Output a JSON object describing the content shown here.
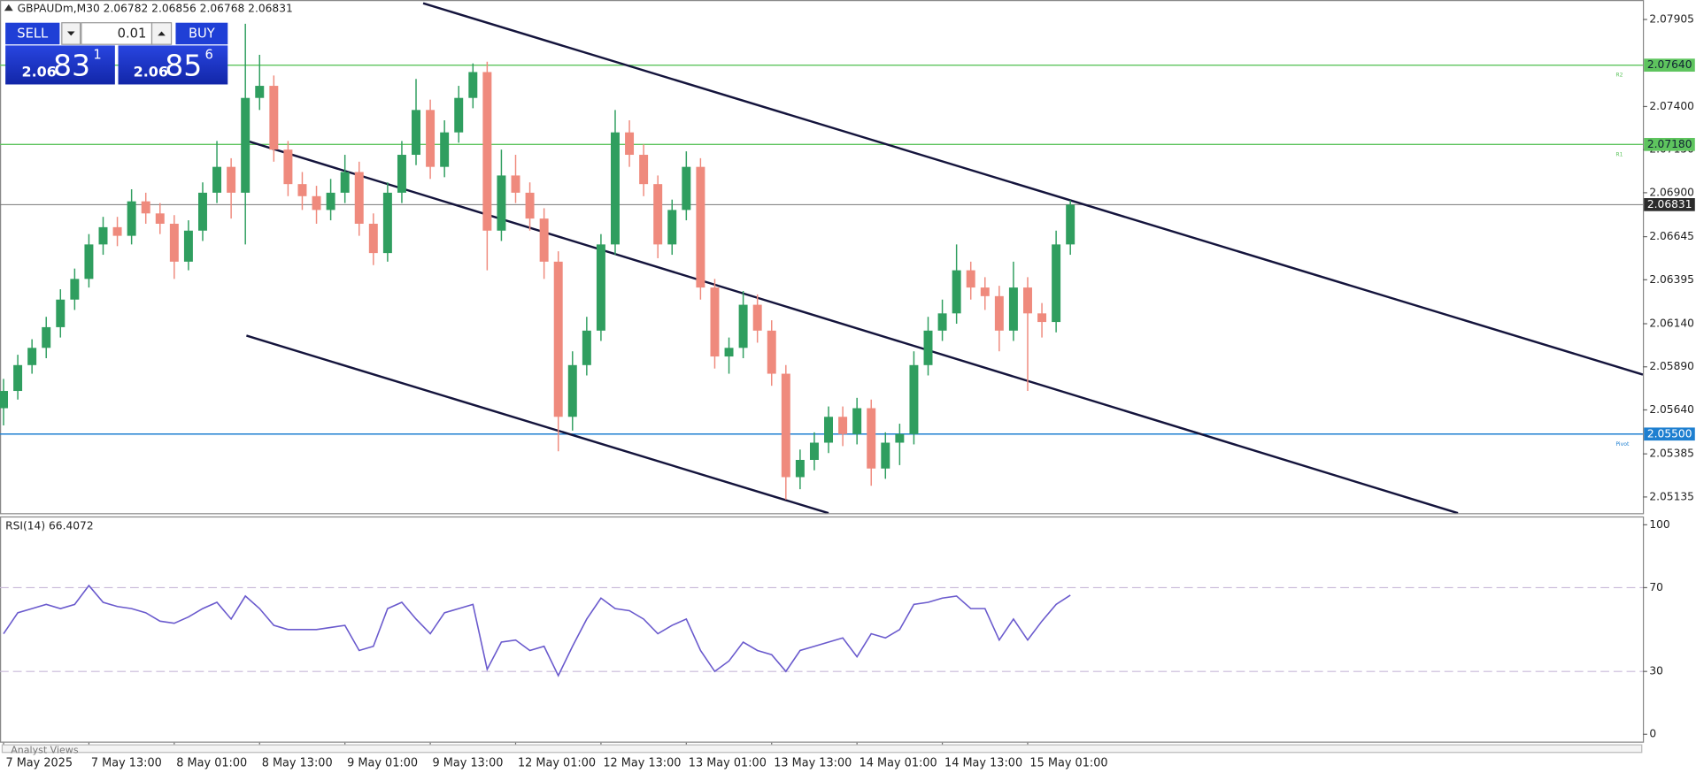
{
  "header": {
    "symbol_info": "GBPAUDm,M30  2.06782 2.06856 2.06768 2.06831"
  },
  "trade_panel": {
    "sell": "SELL",
    "buy": "BUY",
    "volume": "0.01",
    "bid_big": "2.06",
    "bid_main": "83",
    "bid_sup": "1",
    "ask_big": "2.06",
    "ask_main": "85",
    "ask_sup": "6"
  },
  "chart_data": [
    {
      "type": "candlestick",
      "x": [
        0,
        4,
        8,
        12,
        16,
        20,
        24,
        28,
        32,
        36,
        40,
        44,
        48,
        52,
        56,
        60,
        64,
        68,
        72,
        76,
        80,
        84,
        88,
        92,
        96,
        100,
        104,
        108,
        112,
        116,
        120,
        124,
        128,
        132,
        136,
        140,
        144,
        148,
        152,
        156,
        160,
        164,
        168,
        172,
        176,
        180,
        184,
        188,
        192,
        196,
        200,
        204,
        208,
        212,
        216,
        220,
        224,
        228,
        232,
        236,
        240,
        244,
        248,
        252,
        256,
        260,
        264,
        268,
        272,
        276,
        280,
        284,
        288,
        292,
        296,
        300
      ],
      "open": [
        2.0565,
        2.0575,
        2.059,
        2.06,
        2.0612,
        2.0628,
        2.064,
        2.066,
        2.067,
        2.0665,
        2.0685,
        2.0678,
        2.0672,
        2.065,
        2.0668,
        2.069,
        2.0705,
        2.069,
        2.0745,
        2.0752,
        2.0715,
        2.0695,
        2.0688,
        2.068,
        2.069,
        2.0702,
        2.0672,
        2.0655,
        2.069,
        2.0712,
        2.0738,
        2.0705,
        2.0725,
        2.0745,
        2.076,
        2.0668,
        2.07,
        2.069,
        2.0675,
        2.065,
        2.056,
        2.059,
        2.061,
        2.066,
        2.0725,
        2.0712,
        2.0695,
        2.066,
        2.068,
        2.0705,
        2.0635,
        2.0595,
        2.06,
        2.0625,
        2.061,
        2.0585,
        2.0525,
        2.0535,
        2.0545,
        2.056,
        2.055,
        2.0565,
        2.053,
        2.0545,
        2.055,
        2.059,
        2.061,
        2.062,
        2.0645,
        2.0635,
        2.063,
        2.061,
        2.0635,
        2.062,
        2.0615,
        2.066
      ],
      "high": [
        2.0582,
        2.0596,
        2.0605,
        2.0618,
        2.0634,
        2.0646,
        2.0666,
        2.0676,
        2.0676,
        2.0692,
        2.069,
        2.0684,
        2.0677,
        2.0674,
        2.0696,
        2.072,
        2.071,
        2.0788,
        2.077,
        2.0758,
        2.072,
        2.0702,
        2.0694,
        2.0698,
        2.0712,
        2.0708,
        2.0678,
        2.0696,
        2.072,
        2.0756,
        2.0744,
        2.0732,
        2.0752,
        2.0765,
        2.0766,
        2.0715,
        2.0712,
        2.0696,
        2.0681,
        2.0656,
        2.0598,
        2.0618,
        2.0666,
        2.0738,
        2.0732,
        2.0718,
        2.07,
        2.0686,
        2.0714,
        2.071,
        2.064,
        2.0606,
        2.0633,
        2.0631,
        2.0616,
        2.059,
        2.0541,
        2.0551,
        2.0566,
        2.0566,
        2.0571,
        2.057,
        2.0551,
        2.0556,
        2.0598,
        2.0618,
        2.0628,
        2.066,
        2.065,
        2.0641,
        2.0636,
        2.065,
        2.0641,
        2.0626,
        2.0668,
        2.06856
      ],
      "low": [
        2.0555,
        2.057,
        2.0585,
        2.0594,
        2.0606,
        2.0622,
        2.0635,
        2.0654,
        2.0659,
        2.066,
        2.0672,
        2.0666,
        2.064,
        2.0645,
        2.0662,
        2.0684,
        2.0675,
        2.066,
        2.0738,
        2.0708,
        2.0688,
        2.068,
        2.0672,
        2.0674,
        2.0684,
        2.0665,
        2.0648,
        2.065,
        2.0684,
        2.0706,
        2.0698,
        2.0699,
        2.0719,
        2.0739,
        2.0645,
        2.0662,
        2.0684,
        2.0668,
        2.064,
        2.054,
        2.0552,
        2.0584,
        2.0604,
        2.0654,
        2.0705,
        2.0688,
        2.0652,
        2.0654,
        2.0674,
        2.0628,
        2.0588,
        2.0585,
        2.0594,
        2.0603,
        2.0578,
        2.0512,
        2.0518,
        2.0529,
        2.0539,
        2.0543,
        2.0544,
        2.052,
        2.0524,
        2.0532,
        2.0544,
        2.0584,
        2.0604,
        2.0614,
        2.0628,
        2.0622,
        2.0598,
        2.0604,
        2.0575,
        2.0606,
        2.0609,
        2.0654
      ],
      "close": [
        2.0575,
        2.059,
        2.06,
        2.0612,
        2.0628,
        2.064,
        2.066,
        2.067,
        2.0665,
        2.0685,
        2.0678,
        2.0672,
        2.065,
        2.0668,
        2.069,
        2.0705,
        2.069,
        2.0745,
        2.0752,
        2.0715,
        2.0695,
        2.0688,
        2.068,
        2.069,
        2.0702,
        2.0672,
        2.0655,
        2.069,
        2.0712,
        2.0738,
        2.0705,
        2.0725,
        2.0745,
        2.076,
        2.0668,
        2.07,
        2.069,
        2.0675,
        2.065,
        2.056,
        2.059,
        2.061,
        2.066,
        2.0725,
        2.0712,
        2.0695,
        2.066,
        2.068,
        2.0705,
        2.0635,
        2.0595,
        2.06,
        2.0625,
        2.061,
        2.0585,
        2.0525,
        2.0535,
        2.0545,
        2.056,
        2.055,
        2.0565,
        2.053,
        2.0545,
        2.055,
        2.059,
        2.061,
        2.062,
        2.0645,
        2.0635,
        2.063,
        2.061,
        2.0635,
        2.062,
        2.0615,
        2.066,
        2.06831
      ],
      "up_color": "#2f9e5f",
      "down_color": "#ef8a7d",
      "xlim": [
        -1,
        461
      ],
      "ylim": [
        2.05041,
        2.08018
      ],
      "xticks": [
        {
          "value": 0,
          "label": "7 May 2025"
        },
        {
          "value": 24,
          "label": "7 May 13:00"
        },
        {
          "value": 48,
          "label": "8 May 01:00"
        },
        {
          "value": 72,
          "label": "8 May 13:00"
        },
        {
          "value": 96,
          "label": "9 May 01:00"
        },
        {
          "value": 120,
          "label": "9 May 13:00"
        },
        {
          "value": 144,
          "label": "12 May 01:00"
        },
        {
          "value": 168,
          "label": "12 May 13:00"
        },
        {
          "value": 192,
          "label": "13 May 01:00"
        },
        {
          "value": 216,
          "label": "13 May 13:00"
        },
        {
          "value": 240,
          "label": "14 May 01:00"
        },
        {
          "value": 264,
          "label": "14 May 13:00"
        },
        {
          "value": 288,
          "label": "15 May 01:00"
        }
      ],
      "yticks": [
        2.07905,
        {
          "value": 2.074,
          "label": "2.07400"
        },
        {
          "value": 2.0715,
          "label": "2.07150"
        },
        {
          "value": 2.069,
          "label": "2.06900"
        },
        2.06645,
        2.06395,
        {
          "value": 2.0614,
          "label": "2.06140"
        },
        {
          "value": 2.0589,
          "label": "2.05890"
        },
        {
          "value": 2.0564,
          "label": "2.05640"
        },
        2.05385,
        2.05135
      ],
      "levels": [
        {
          "name": "R2",
          "value": 2.0764,
          "label": "2.07640",
          "color": "#5ec45e"
        },
        {
          "name": "R1",
          "value": 2.0718,
          "label": "2.07180",
          "color": "#5ec45e"
        },
        {
          "name": "Pivot",
          "value": 2.055,
          "label": "2.05500",
          "color": "#1e7fd0"
        }
      ],
      "current_price": 2.06831,
      "trendlines": [
        {
          "x": [
            118,
            461
          ],
          "y": [
            2.07999,
            2.05845
          ]
        },
        {
          "x": [
            68.3,
            409
          ],
          "y": [
            2.07202,
            2.05041
          ]
        },
        {
          "x": [
            68.3,
            232
          ],
          "y": [
            2.06071,
            2.05041
          ]
        }
      ],
      "trendline_color": "#14143c"
    },
    {
      "type": "line",
      "title": "RSI(14) 66.4072",
      "x": [
        0,
        4,
        8,
        12,
        16,
        20,
        24,
        28,
        32,
        36,
        40,
        44,
        48,
        52,
        56,
        60,
        64,
        68,
        72,
        76,
        80,
        84,
        88,
        92,
        96,
        100,
        104,
        108,
        112,
        116,
        120,
        124,
        128,
        132,
        136,
        140,
        144,
        148,
        152,
        156,
        160,
        164,
        168,
        172,
        176,
        180,
        184,
        188,
        192,
        196,
        200,
        204,
        208,
        212,
        216,
        220,
        224,
        228,
        232,
        236,
        240,
        244,
        248,
        252,
        256,
        260,
        264,
        268,
        272,
        276,
        280,
        284,
        288,
        292,
        296,
        300
      ],
      "values": [
        48,
        58,
        60,
        62,
        60,
        62,
        71,
        63,
        61,
        60,
        58,
        54,
        53,
        56,
        60,
        63,
        55,
        66,
        60,
        52,
        50,
        50,
        50,
        51,
        52,
        40,
        42,
        60,
        63,
        55,
        48,
        58,
        60,
        62,
        31,
        44,
        45,
        40,
        42,
        28,
        42,
        55,
        65,
        60,
        59,
        55,
        48,
        52,
        55,
        40,
        30,
        35,
        44,
        40,
        38,
        30,
        40,
        42,
        44,
        46,
        37,
        48,
        46,
        50,
        62,
        63,
        65,
        66,
        60,
        60,
        45,
        55,
        45,
        54,
        62,
        66.4072
      ],
      "color": "#6a5acd",
      "xlim": [
        -1,
        461
      ],
      "ylim": [
        -4,
        104
      ],
      "yticks": [
        100,
        70,
        30,
        0
      ],
      "levels": [
        70,
        30
      ]
    }
  ],
  "footer": {
    "tab": "Analyst Views"
  }
}
